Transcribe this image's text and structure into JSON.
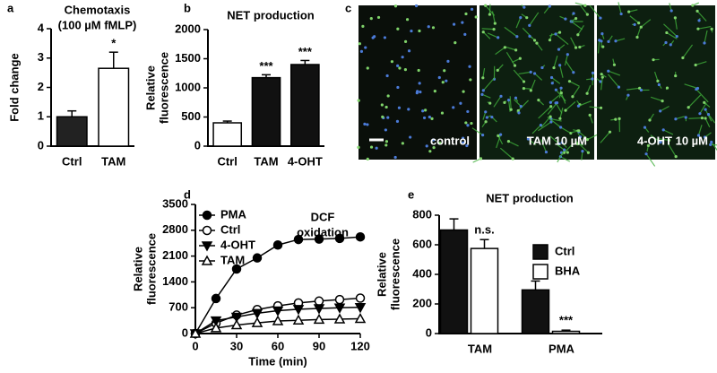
{
  "chart_data": [
    {
      "type": "bar",
      "panel": "a",
      "title": "Chemotaxis",
      "subtitle": "(100 µM fMLP)",
      "ylabel": [
        "Fold change"
      ],
      "categories": [
        "Ctrl",
        "TAM"
      ],
      "values": [
        1.0,
        2.65
      ],
      "errors": [
        0.2,
        0.55
      ],
      "colors": [
        "#222222",
        "#ffffff"
      ],
      "significance": [
        null,
        "*"
      ],
      "ylim": [
        0,
        4
      ],
      "yticks": [
        0,
        1,
        2,
        3,
        4
      ]
    },
    {
      "type": "bar",
      "panel": "b",
      "title": "NET production",
      "ylabel": [
        "Relative",
        "fluorescence"
      ],
      "categories": [
        "Ctrl",
        "TAM",
        "4-OHT"
      ],
      "values": [
        400,
        1175,
        1400
      ],
      "errors": [
        30,
        50,
        70
      ],
      "colors": [
        "#ffffff",
        "#111111",
        "#111111"
      ],
      "significance": [
        null,
        "***",
        "***"
      ],
      "ylim": [
        0,
        2000
      ],
      "yticks": [
        0,
        500,
        1000,
        1500,
        2000
      ]
    },
    {
      "type": "image",
      "panel": "c",
      "labels": [
        "control",
        "TAM 10 µM",
        "4-OHT 10 µM"
      ]
    },
    {
      "type": "line",
      "panel": "d",
      "annotation": [
        "DCF",
        "oxidation"
      ],
      "xlabel": "Time (min)",
      "ylabel": [
        "Relative",
        "fluorescence"
      ],
      "x": [
        0,
        15,
        30,
        45,
        60,
        75,
        90,
        105,
        120
      ],
      "series": [
        {
          "name": "PMA",
          "marker": "circle-filled",
          "color": "#000000",
          "values": [
            0,
            950,
            1750,
            2050,
            2400,
            2550,
            2560,
            2580,
            2620
          ]
        },
        {
          "name": "Ctrl",
          "marker": "circle-open",
          "color": "#000000",
          "values": [
            0,
            280,
            500,
            650,
            750,
            830,
            880,
            920,
            960
          ]
        },
        {
          "name": "4-OHT",
          "marker": "triangle-down-filled",
          "color": "#000000",
          "values": [
            0,
            350,
            450,
            550,
            620,
            660,
            680,
            700,
            710
          ]
        },
        {
          "name": "TAM",
          "marker": "triangle-up-open",
          "color": "#000000",
          "values": [
            0,
            150,
            230,
            290,
            340,
            360,
            380,
            390,
            400
          ]
        }
      ],
      "xlim": [
        0,
        120
      ],
      "xticks": [
        0,
        30,
        60,
        90,
        120
      ],
      "ylim": [
        0,
        3500
      ],
      "yticks": [
        0,
        700,
        1400,
        2100,
        2800,
        3500
      ]
    },
    {
      "type": "grouped_bar",
      "panel": "e",
      "title": "NET production",
      "ylabel": [
        "Relative",
        "fluorescence"
      ],
      "categories": [
        "TAM",
        "PMA"
      ],
      "series": [
        {
          "name": "Ctrl",
          "color": "#111111",
          "values": [
            700,
            295
          ],
          "errors": [
            75,
            60
          ],
          "significance": [
            null,
            null
          ]
        },
        {
          "name": "BHA",
          "color": "#ffffff",
          "values": [
            575,
            15
          ],
          "errors": [
            60,
            8
          ],
          "significance": [
            "n.s.",
            "***"
          ]
        }
      ],
      "ylim": [
        0,
        800
      ],
      "yticks": [
        0,
        200,
        400,
        600,
        800
      ],
      "legend": "upper right"
    }
  ]
}
